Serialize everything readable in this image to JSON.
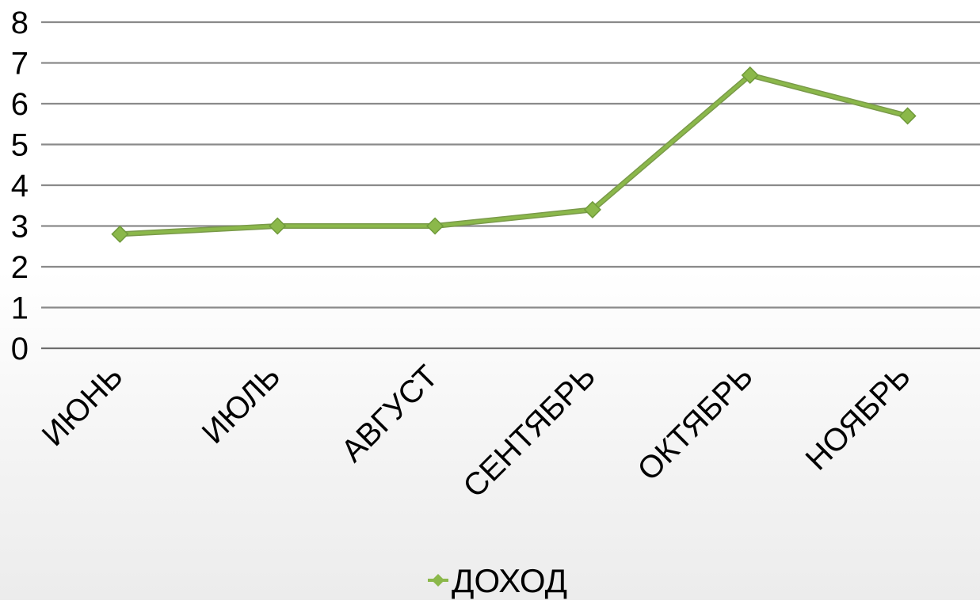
{
  "chart_data": {
    "type": "line",
    "title": "",
    "xlabel": "",
    "ylabel": "",
    "categories": [
      "ИЮНЬ",
      "ИЮЛЬ",
      "АВГУСТ",
      "СЕНТЯБРЬ",
      "ОКТЯБРЬ",
      "НОЯБРЬ"
    ],
    "series": [
      {
        "name": "ДОХОД",
        "values": [
          2.8,
          3.0,
          3.0,
          3.4,
          6.7,
          5.7
        ],
        "color": "#8bb84a"
      }
    ],
    "ylim": [
      0,
      8
    ],
    "y_ticks": [
      "0",
      "1",
      "2",
      "3",
      "4",
      "5",
      "6",
      "7",
      "8"
    ],
    "grid": true,
    "legend_position": "bottom",
    "marker": "diamond"
  }
}
